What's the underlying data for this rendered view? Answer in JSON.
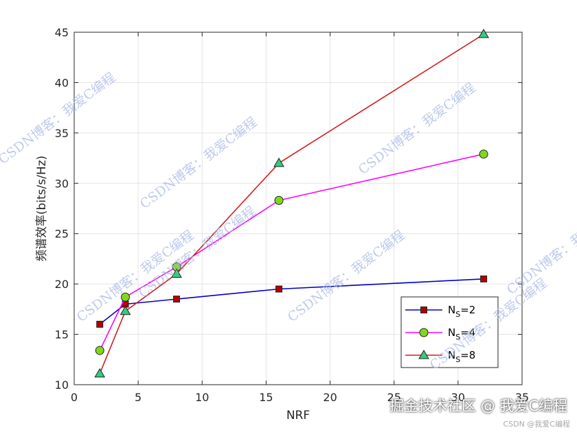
{
  "chart_data": {
    "type": "line",
    "xlabel": "NRF",
    "ylabel": "频谱效率(bits/s/Hz)",
    "xlim": [
      0,
      35
    ],
    "ylim": [
      10,
      45
    ],
    "xticks": [
      0,
      5,
      10,
      15,
      20,
      25,
      30,
      35
    ],
    "yticks": [
      10,
      15,
      20,
      25,
      30,
      35,
      40,
      45
    ],
    "grid": true,
    "legend_position": "bottom-right",
    "x": [
      2,
      4,
      8,
      16,
      32
    ],
    "series": [
      {
        "name": "N_S=2",
        "legend_base": "N",
        "legend_sub": "S",
        "legend_rest": "=2",
        "color": "#0000c8",
        "marker": "square",
        "marker_fill": "#b30000",
        "values": [
          16.0,
          18.0,
          18.5,
          19.5,
          20.5
        ]
      },
      {
        "name": "N_S=4",
        "legend_base": "N",
        "legend_sub": "S",
        "legend_rest": "=4",
        "color": "#ff00ff",
        "marker": "circle",
        "marker_fill": "#7fd91a",
        "values": [
          13.4,
          18.7,
          21.7,
          28.3,
          32.9
        ]
      },
      {
        "name": "N_S=8",
        "legend_base": "N",
        "legend_sub": "S",
        "legend_rest": "=8",
        "color": "#d31e1e",
        "marker": "triangle",
        "marker_fill": "#33cc80",
        "values": [
          11.1,
          17.3,
          21.0,
          32.0,
          44.8
        ]
      }
    ]
  },
  "watermarks": {
    "repeated": "CSDN博客：我爱C编程",
    "corner_main": "掘金技术社区 @ 我爱C编程",
    "corner_small": "CSDN @我爱C编程"
  }
}
